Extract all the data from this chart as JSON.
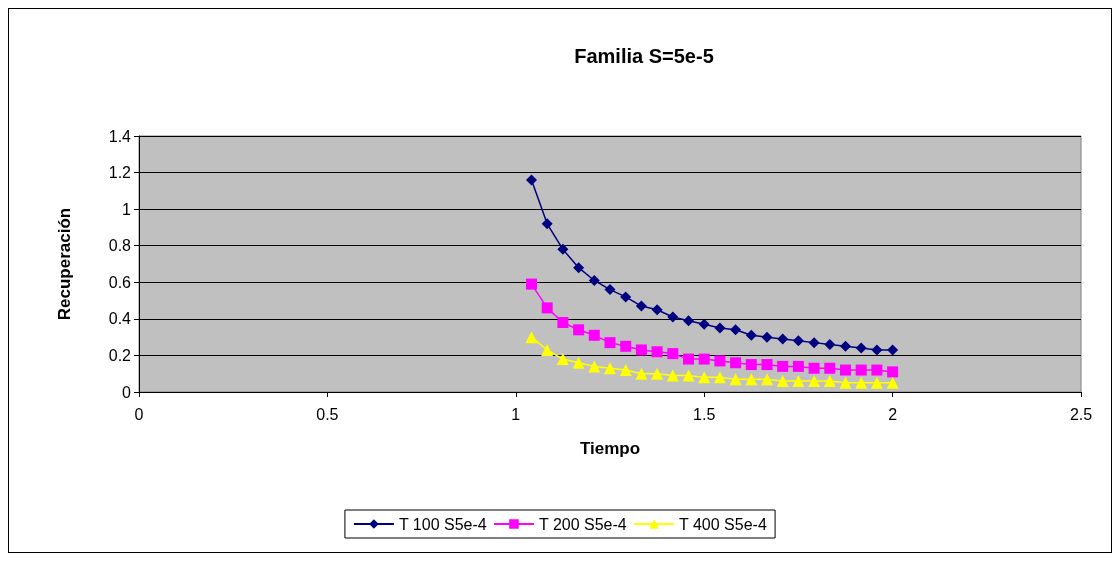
{
  "chart_data": {
    "type": "line",
    "title": "Familia S=5e-5",
    "xlabel": "Tiempo",
    "ylabel": "Recuperación",
    "x": [
      1.0417,
      1.0833,
      1.125,
      1.1667,
      1.2083,
      1.25,
      1.2917,
      1.3333,
      1.375,
      1.4167,
      1.4583,
      1.5,
      1.5417,
      1.5833,
      1.625,
      1.6667,
      1.7083,
      1.75,
      1.7917,
      1.8333,
      1.875,
      1.9167,
      1.9583,
      2
    ],
    "series": [
      {
        "name": "T 100 S5e-4",
        "color": "#000080",
        "marker": "diamond",
        "values": [
          1.16,
          0.92,
          0.78,
          0.68,
          0.61,
          0.56,
          0.52,
          0.47,
          0.45,
          0.41,
          0.39,
          0.37,
          0.35,
          0.34,
          0.31,
          0.3,
          0.29,
          0.28,
          0.27,
          0.26,
          0.25,
          0.24,
          0.23,
          0.23
        ]
      },
      {
        "name": "T 200 S5e-4",
        "color": "#ff00ff",
        "marker": "square",
        "values": [
          0.59,
          0.46,
          0.38,
          0.34,
          0.31,
          0.27,
          0.25,
          0.23,
          0.22,
          0.21,
          0.18,
          0.18,
          0.17,
          0.16,
          0.15,
          0.15,
          0.14,
          0.14,
          0.13,
          0.13,
          0.12,
          0.12,
          0.12,
          0.11
        ]
      },
      {
        "name": "T 400 S5e-4",
        "color": "#ffff00",
        "marker": "triangle",
        "values": [
          0.3,
          0.23,
          0.18,
          0.16,
          0.14,
          0.13,
          0.12,
          0.1,
          0.1,
          0.09,
          0.09,
          0.08,
          0.08,
          0.07,
          0.07,
          0.07,
          0.06,
          0.06,
          0.06,
          0.06,
          0.05,
          0.05,
          0.05,
          0.05
        ]
      }
    ],
    "xlim": [
      0,
      2.5
    ],
    "xticks": [
      0,
      0.5,
      1,
      1.5,
      2,
      2.5
    ],
    "ylim": [
      0,
      1.4
    ],
    "yticks": [
      0,
      0.2,
      0.4,
      0.6,
      0.8,
      1,
      1.2,
      1.4
    ],
    "grid": "y",
    "legend": "bottom"
  }
}
